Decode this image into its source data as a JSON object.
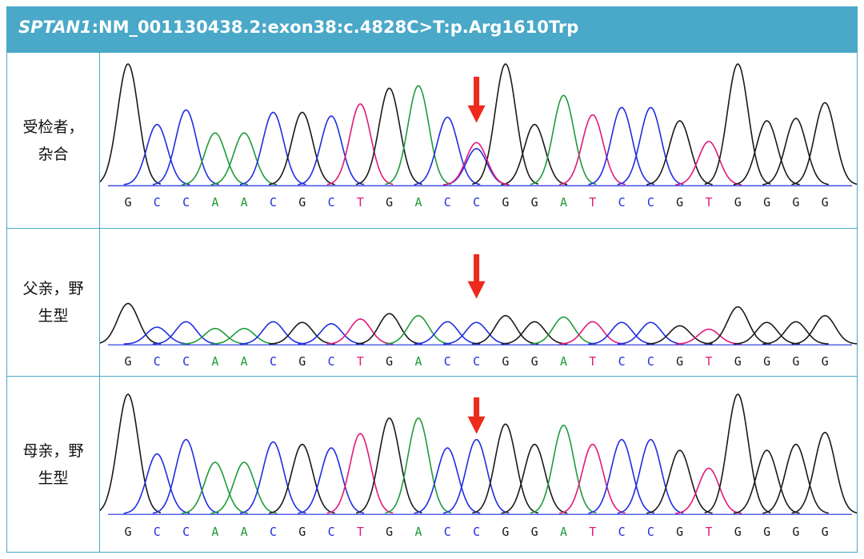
{
  "header": {
    "gene": "SPTAN1",
    "variant": ":NM_001130438.2:exon38:c.4828C>T:p.Arg1610Trp"
  },
  "colors": {
    "frame": "#4aa8c8",
    "G": "#1a1a1a",
    "C": "#1f2ee0",
    "A": "#1e9b3a",
    "T": "#e0197a",
    "arrow": "#ee2a1b"
  },
  "sequence": [
    "G",
    "C",
    "C",
    "A",
    "A",
    "C",
    "G",
    "C",
    "T",
    "G",
    "A",
    "C",
    "C",
    "G",
    "G",
    "A",
    "T",
    "C",
    "C",
    "G",
    "T",
    "G",
    "G",
    "G",
    "G"
  ],
  "mutation_index": 12,
  "rows": [
    {
      "label_line1": "受检者，",
      "label_line2": "杂合",
      "peaks": [
        1.0,
        0.5,
        0.62,
        0.43,
        0.43,
        0.6,
        0.6,
        0.57,
        0.67,
        0.8,
        0.82,
        0.56,
        0.3,
        1.0,
        0.5,
        0.74,
        0.58,
        0.64,
        0.64,
        0.53,
        0.36,
        1.0,
        0.53,
        0.55,
        0.68
      ],
      "secondary_peak": {
        "base": "T",
        "height": 0.35
      }
    },
    {
      "label_line1": "父亲，野",
      "label_line2": "生型",
      "peaks": [
        0.6,
        0.25,
        0.33,
        0.23,
        0.23,
        0.33,
        0.32,
        0.3,
        0.37,
        0.45,
        0.42,
        0.33,
        0.32,
        0.42,
        0.33,
        0.4,
        0.33,
        0.32,
        0.32,
        0.27,
        0.22,
        0.55,
        0.32,
        0.33,
        0.42
      ],
      "secondary_peak": null
    },
    {
      "label_line1": "母亲，野",
      "label_line2": "生型",
      "peaks": [
        1.0,
        0.5,
        0.62,
        0.43,
        0.43,
        0.6,
        0.58,
        0.55,
        0.67,
        0.8,
        0.8,
        0.55,
        0.62,
        0.75,
        0.58,
        0.74,
        0.58,
        0.62,
        0.62,
        0.53,
        0.38,
        1.0,
        0.53,
        0.58,
        0.68
      ],
      "secondary_peak": null
    }
  ]
}
